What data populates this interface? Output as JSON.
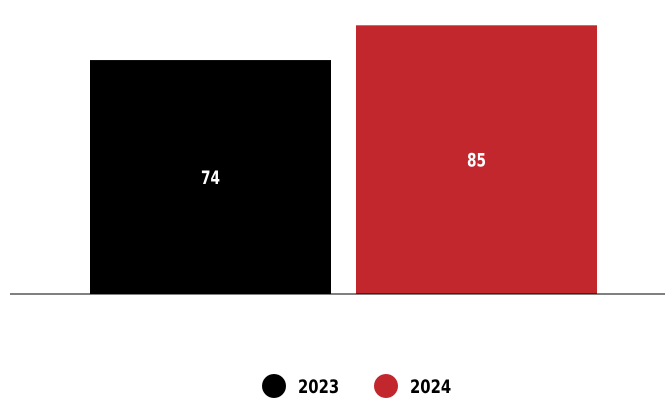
{
  "chart_data": {
    "type": "bar",
    "title": "",
    "xlabel": "",
    "ylabel": "",
    "categories": [
      "2023",
      "2024"
    ],
    "values": [
      74,
      85
    ],
    "value_labels": [
      "74",
      "85"
    ],
    "colors": [
      "#000000",
      "#c1272d"
    ],
    "ylim": [
      0,
      93
    ],
    "grid": false,
    "legend": {
      "placement": "bottom-center",
      "entries": [
        {
          "label": "2023",
          "color": "#000000"
        },
        {
          "label": "2024",
          "color": "#c1272d"
        }
      ]
    }
  }
}
